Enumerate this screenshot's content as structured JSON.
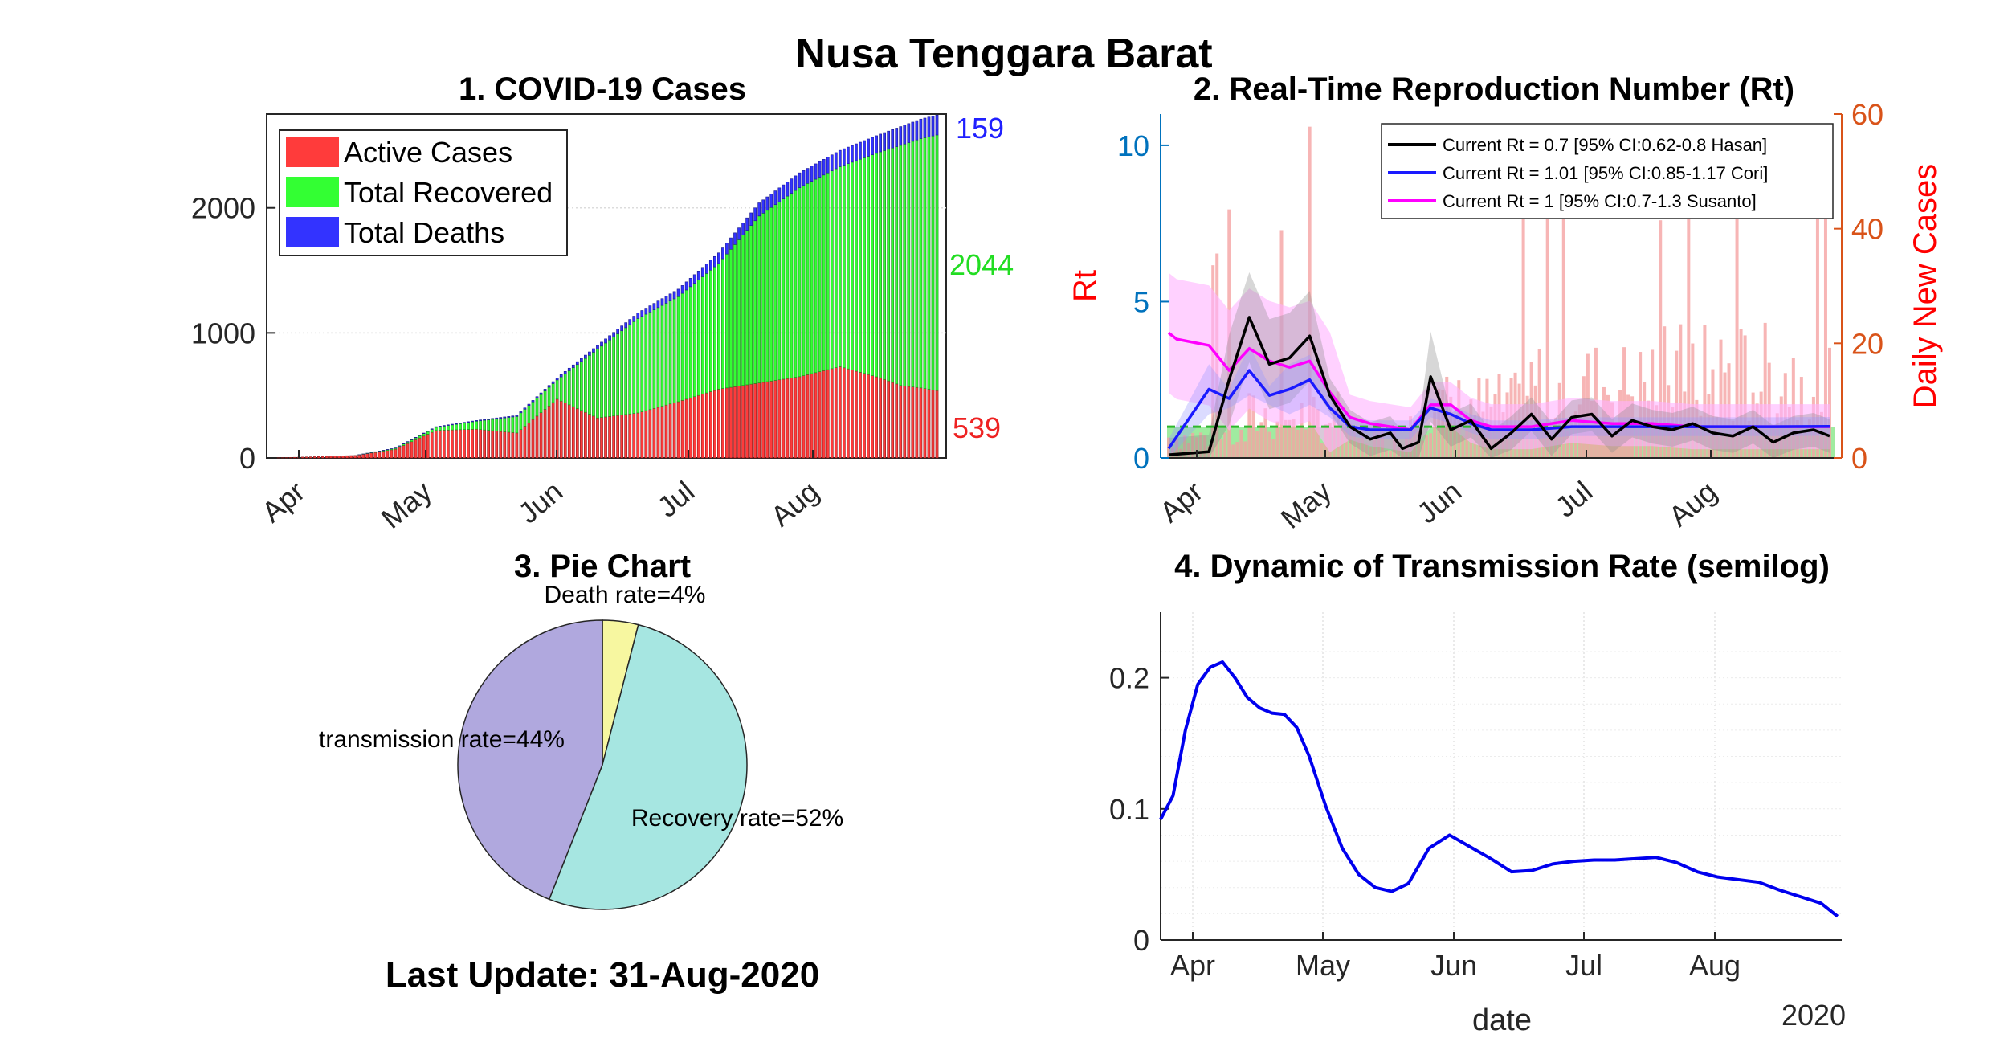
{
  "figure": {
    "title": "Nusa Tenggara Barat",
    "last_update": "Last Update: 31-Aug-2020"
  },
  "chart_data": [
    {
      "id": "cases",
      "type": "bar",
      "title": "1. COVID-19 Cases",
      "stacked": true,
      "x_ticks": [
        "Apr",
        "May",
        "Jun",
        "Jul",
        "Aug"
      ],
      "ylim": [
        0,
        2750
      ],
      "y_ticks": [
        0,
        1000,
        2000
      ],
      "legend": {
        "position": "top-left",
        "entries": [
          "Active Cases",
          "Total Recovered",
          "Total Deaths"
        ]
      },
      "end_labels": {
        "deaths": "159",
        "recovered": "2044",
        "active": "539"
      },
      "colors": {
        "active": "#ff3b3b",
        "recovered": "#33ff33",
        "deaths": "#3333ff",
        "deaths_label": "#2020ff",
        "recovered_label": "#22dd22",
        "active_label": "#ee2222"
      },
      "series_samples": {
        "day": [
          0,
          20,
          30,
          40,
          50,
          60,
          70,
          80,
          90,
          100,
          110,
          120,
          130,
          140,
          150,
          155,
          160,
          164
        ],
        "total": [
          0,
          20,
          80,
          250,
          300,
          340,
          640,
          900,
          1160,
          1350,
          1640,
          2040,
          2280,
          2460,
          2590,
          2650,
          2710,
          2742
        ],
        "active": [
          0,
          20,
          70,
          220,
          230,
          200,
          470,
          320,
          360,
          450,
          550,
          600,
          650,
          730,
          640,
          580,
          560,
          539
        ],
        "deaths": [
          0,
          0,
          2,
          5,
          6,
          8,
          16,
          30,
          45,
          60,
          85,
          105,
          118,
          130,
          142,
          150,
          156,
          159
        ]
      }
    },
    {
      "id": "rt",
      "type": "line",
      "title": "2. Real-Time Reproduction Number (Rt)",
      "x_ticks": [
        "Apr",
        "May",
        "Jun",
        "Jul",
        "Aug"
      ],
      "ylabel_left": "Rt",
      "ylabel_right": "Daily New Cases",
      "ylim_left": [
        0,
        11
      ],
      "ylim_right": [
        0,
        60
      ],
      "y_ticks_left": [
        0,
        5,
        10
      ],
      "y_ticks_right": [
        0,
        20,
        40,
        60
      ],
      "legend": {
        "position": "top-right",
        "entries": [
          "Current Rt = 0.7 [95% CI:0.62-0.8 Hasan]",
          "Current Rt = 1.01 [95% CI:0.85-1.17 Cori]",
          "Current Rt = 1 [95% CI:0.7-1.3 Susanto]"
        ]
      },
      "colors": {
        "left_axis": "#0072bd",
        "right_axis": "#d95319",
        "label_red": "#ff0000",
        "hasan": "#000000",
        "cori": "#1a1aff",
        "susanto": "#ff00ff",
        "threshold": "#2db82d",
        "daily_bars": "#f5a3a3",
        "below_one_fill": "#8fe88f"
      },
      "hasan": {
        "day": [
          0,
          10,
          15,
          20,
          25,
          30,
          35,
          40,
          45,
          50,
          55,
          58,
          62,
          65,
          70,
          75,
          80,
          85,
          90,
          95,
          100,
          105,
          110,
          115,
          120,
          125,
          130,
          135,
          140,
          145,
          150,
          155,
          160,
          164
        ],
        "rt": [
          0.1,
          0.2,
          2.5,
          4.5,
          3.0,
          3.2,
          3.9,
          2.0,
          1.0,
          0.6,
          0.8,
          0.3,
          0.5,
          2.6,
          0.9,
          1.2,
          0.3,
          0.8,
          1.4,
          0.6,
          1.3,
          1.4,
          0.7,
          1.2,
          1.0,
          0.9,
          1.1,
          0.8,
          0.7,
          1.0,
          0.5,
          0.8,
          0.9,
          0.7
        ]
      },
      "cori": {
        "day": [
          0,
          10,
          15,
          20,
          25,
          30,
          35,
          40,
          45,
          50,
          55,
          60,
          65,
          70,
          75,
          80,
          90,
          100,
          110,
          120,
          130,
          140,
          150,
          164
        ],
        "rt": [
          0.3,
          2.2,
          1.9,
          2.8,
          2.0,
          2.2,
          2.5,
          1.6,
          1.0,
          0.9,
          0.9,
          0.9,
          1.6,
          1.4,
          1.1,
          0.9,
          0.9,
          1.0,
          1.0,
          1.0,
          1.0,
          1.0,
          1.0,
          1.01
        ]
      },
      "susanto": {
        "day": [
          0,
          2,
          10,
          15,
          20,
          25,
          30,
          35,
          40,
          45,
          50,
          55,
          60,
          65,
          70,
          75,
          80,
          90,
          100,
          110,
          120,
          130,
          140,
          150,
          164
        ],
        "rt": [
          4.0,
          3.8,
          3.6,
          2.8,
          3.5,
          3.1,
          2.9,
          3.1,
          2.1,
          1.3,
          1.1,
          1.0,
          0.9,
          1.7,
          1.7,
          1.2,
          1.0,
          1.0,
          1.2,
          1.1,
          1.1,
          1.0,
          1.0,
          1.0,
          1.0
        ]
      }
    },
    {
      "id": "pie",
      "type": "pie",
      "title": "3. Pie Chart",
      "slices": [
        {
          "label": "Death rate=4%",
          "value": 4,
          "color": "#f7f7a0"
        },
        {
          "label": "Recovery rate=52%",
          "value": 52,
          "color": "#a6e6e1"
        },
        {
          "label": "transmission rate=44%",
          "value": 44,
          "color": "#b0a8de"
        }
      ]
    },
    {
      "id": "transmission",
      "type": "line",
      "title": "4. Dynamic of Transmission Rate (semilog)",
      "xlabel": "date",
      "x_ticks": [
        "Apr",
        "May",
        "Jun",
        "Jul",
        "Aug"
      ],
      "year_label": "2020",
      "ylim": [
        0,
        0.25
      ],
      "y_ticks": [
        "0",
        "0.1",
        "0.2"
      ],
      "colors": {
        "line": "#0000ee"
      },
      "series": {
        "day": [
          0,
          3,
          6,
          9,
          12,
          15,
          18,
          21,
          24,
          27,
          30,
          33,
          36,
          40,
          44,
          48,
          52,
          56,
          60,
          65,
          70,
          75,
          80,
          85,
          90,
          95,
          100,
          105,
          110,
          115,
          120,
          125,
          130,
          135,
          140,
          145,
          150,
          155,
          160,
          164
        ],
        "value": [
          0.092,
          0.11,
          0.16,
          0.195,
          0.208,
          0.212,
          0.2,
          0.185,
          0.177,
          0.173,
          0.172,
          0.162,
          0.14,
          0.102,
          0.07,
          0.05,
          0.04,
          0.037,
          0.043,
          0.07,
          0.08,
          0.071,
          0.062,
          0.052,
          0.053,
          0.058,
          0.06,
          0.061,
          0.061,
          0.062,
          0.063,
          0.059,
          0.052,
          0.048,
          0.046,
          0.044,
          0.038,
          0.033,
          0.028,
          0.018
        ]
      }
    }
  ]
}
